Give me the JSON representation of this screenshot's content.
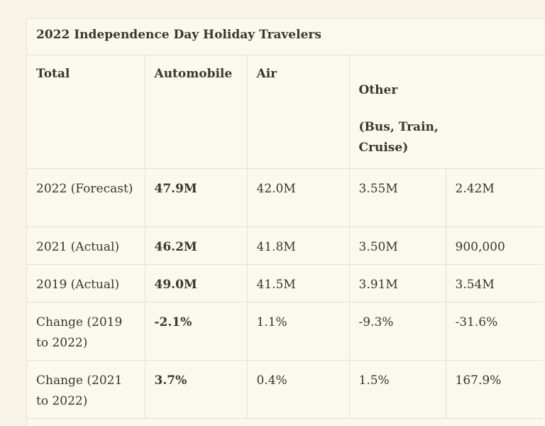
{
  "table": {
    "title": "2022 Independence Day Holiday Travelers",
    "headers": {
      "total": "Total",
      "automobile": "Automobile",
      "air": "Air",
      "other": "Other",
      "other_detail": "(Bus, Train, Cruise)"
    },
    "rows": [
      [
        "2022 (Forecast)",
        "47.9M",
        "42.0M",
        "3.55M",
        "2.42M"
      ],
      [
        "2021 (Actual)",
        "46.2M",
        "41.8M",
        "3.50M",
        "900,000"
      ],
      [
        "2019 (Actual)",
        "49.0M",
        "41.5M",
        "3.91M",
        "3.54M"
      ],
      [
        "Change (2019 to 2022)",
        "-2.1%",
        "1.1%",
        "-9.3%",
        "-31.6%"
      ],
      [
        "Change (2021 to 2022)",
        "3.7%",
        "0.4%",
        "1.5%",
        "167.9%"
      ]
    ]
  }
}
